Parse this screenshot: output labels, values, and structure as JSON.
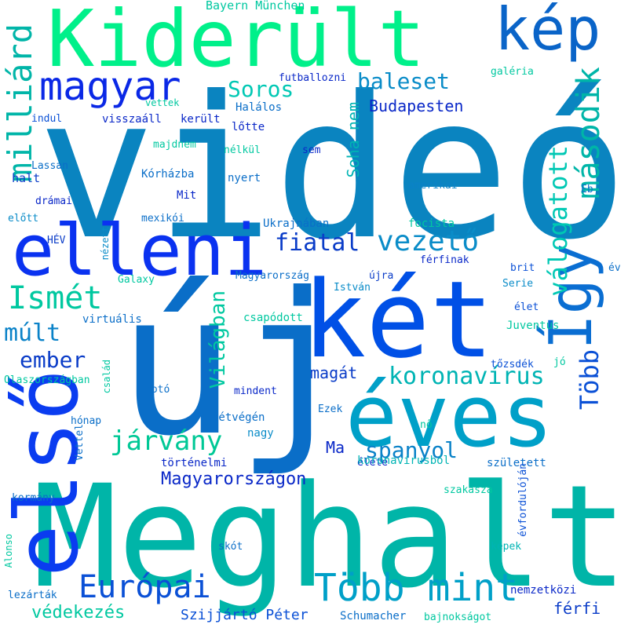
{
  "words": [
    {
      "text": "videó",
      "color": "#0a84c0"
    },
    {
      "text": "új",
      "color": "#0a6ec8"
    },
    {
      "text": "Meghalt",
      "color": "#00b5a8"
    },
    {
      "text": "Kiderült",
      "color": "#00f08a"
    },
    {
      "text": "két",
      "color": "#0050e6"
    },
    {
      "text": "éves",
      "color": "#00a0c8"
    },
    {
      "text": "első",
      "color": "#0a3cf0"
    },
    {
      "text": "elleni",
      "color": "#0a32f0"
    },
    {
      "text": "kép",
      "color": "#0a64c8"
    },
    {
      "text": "Így",
      "color": "#0a6ed2"
    },
    {
      "text": "magyar",
      "color": "#0a28e6"
    },
    {
      "text": "Több mint",
      "color": "#00a0c8"
    },
    {
      "text": "Európai",
      "color": "#0a50d6"
    },
    {
      "text": "milliárd",
      "color": "#00b5a8"
    },
    {
      "text": "vezető",
      "color": "#0a8cc8"
    },
    {
      "text": "Ismét",
      "color": "#00c8a0"
    },
    {
      "text": "második",
      "color": "#00b5a8"
    },
    {
      "text": "válogatott",
      "color": "#00c8b4"
    },
    {
      "text": "Több",
      "color": "#0a50d6"
    },
    {
      "text": "fiatal",
      "color": "#0a3cc8"
    },
    {
      "text": "koronavírus",
      "color": "#00b4b4"
    },
    {
      "text": "járvány",
      "color": "#00c896"
    },
    {
      "text": "spanyol",
      "color": "#0a82c8"
    },
    {
      "text": "baleset",
      "color": "#0a8cc8"
    },
    {
      "text": "Soros",
      "color": "#00c8b4"
    },
    {
      "text": "ember",
      "color": "#0a3cc8"
    },
    {
      "text": "múlt",
      "color": "#0a82c8"
    },
    {
      "text": "Világban",
      "color": "#00c8a0"
    },
    {
      "text": "Magyarországon",
      "color": "#0a28c8"
    },
    {
      "text": "védekezés",
      "color": "#00c8a0"
    },
    {
      "text": "Budapesten",
      "color": "#0a28c8"
    },
    {
      "text": "Soha nem",
      "color": "#00b4b4"
    },
    {
      "text": "magát",
      "color": "#0a3cc8"
    },
    {
      "text": "Ma",
      "color": "#0a28c8"
    },
    {
      "text": "férfi",
      "color": "#0a3cc8"
    },
    {
      "text": "Szijjártó Péter",
      "color": "#0a50d6"
    },
    {
      "text": "Bayern München",
      "color": "#00c8a0"
    },
    {
      "text": "futballozni",
      "color": "#0a28c8"
    },
    {
      "text": "galéria",
      "color": "#00c8a0"
    },
    {
      "text": "vettek",
      "color": "#00c8a0"
    },
    {
      "text": "Halálos",
      "color": "#0a6ec8"
    },
    {
      "text": "indul",
      "color": "#0a50d6"
    },
    {
      "text": "visszaáll",
      "color": "#0a28c8"
    },
    {
      "text": "került",
      "color": "#0a28c8"
    },
    {
      "text": "lőtte",
      "color": "#0a28c8"
    },
    {
      "text": "majdnem",
      "color": "#00c8a0"
    },
    {
      "text": "nélkül",
      "color": "#00c8a0"
    },
    {
      "text": "sem",
      "color": "#0a28c8"
    },
    {
      "text": "Lassan",
      "color": "#0a6ec8"
    },
    {
      "text": "halt",
      "color": "#0a3cc8"
    },
    {
      "text": "Kórházba",
      "color": "#0a6ec8"
    },
    {
      "text": "nyert",
      "color": "#0a6ec8"
    },
    {
      "text": "amerikai",
      "color": "#0a82c8"
    },
    {
      "text": "Eb",
      "color": "#0a6ec8"
    },
    {
      "text": "drámai",
      "color": "#0a28c8"
    },
    {
      "text": "Mit",
      "color": "#0a28c8"
    },
    {
      "text": "előtt",
      "color": "#0a8cc8"
    },
    {
      "text": "mexikói",
      "color": "#0a6ec8"
    },
    {
      "text": "Ukrajnában",
      "color": "#0a6ec8"
    },
    {
      "text": "focista",
      "color": "#00c8a0"
    },
    {
      "text": "HÉV",
      "color": "#0a3cc8"
    },
    {
      "text": "nézett",
      "color": "#0a8cc8"
    },
    {
      "text": "férfinak",
      "color": "#0a28c8"
    },
    {
      "text": "brit",
      "color": "#0a50d6"
    },
    {
      "text": "év",
      "color": "#0a6ec8"
    },
    {
      "text": "Galaxy",
      "color": "#00c8a0"
    },
    {
      "text": "Magyarország",
      "color": "#0a6ec8"
    },
    {
      "text": "újra",
      "color": "#0a3cc8"
    },
    {
      "text": "István",
      "color": "#0a8cc8"
    },
    {
      "text": "Serie",
      "color": "#0a8cc8"
    },
    {
      "text": "élet",
      "color": "#0a50d6"
    },
    {
      "text": "virtuális",
      "color": "#0a6ec8"
    },
    {
      "text": "csapódott",
      "color": "#00c8a0"
    },
    {
      "text": "Juventus",
      "color": "#00c8a0"
    },
    {
      "text": "tőzsdék",
      "color": "#0a50d6"
    },
    {
      "text": "jó",
      "color": "#00c8a0"
    },
    {
      "text": "Olaszországban",
      "color": "#00c8a0"
    },
    {
      "text": "család",
      "color": "#00c8a0"
    },
    {
      "text": "fotó",
      "color": "#0a6ec8"
    },
    {
      "text": "mindent",
      "color": "#0a28c8"
    },
    {
      "text": "hónap",
      "color": "#0a6ec8"
    },
    {
      "text": "hétvégén",
      "color": "#0a6ec8"
    },
    {
      "text": "Ezek",
      "color": "#0a6ec8"
    },
    {
      "text": "nagy",
      "color": "#0a8cc8"
    },
    {
      "text": "nő",
      "color": "#00c8a0"
    },
    {
      "text": "Vettel",
      "color": "#0a6ec8"
    },
    {
      "text": "történelmi",
      "color": "#0a28c8"
    },
    {
      "text": "élete",
      "color": "#0a28c8"
    },
    {
      "text": "koronavírusból",
      "color": "#00b4b4"
    },
    {
      "text": "született",
      "color": "#0a6ec8"
    },
    {
      "text": "évfordulóján",
      "color": "#0a50d6"
    },
    {
      "text": "kormány",
      "color": "#0a6ec8"
    },
    {
      "text": "szakasza",
      "color": "#00c8a0"
    },
    {
      "text": "Alonso",
      "color": "#00c8a0"
    },
    {
      "text": "skót",
      "color": "#0a6ec8"
    },
    {
      "text": "képek",
      "color": "#00b4b4"
    },
    {
      "text": "lezárták",
      "color": "#0a6ec8"
    },
    {
      "text": "nemzetközi",
      "color": "#0a28c8"
    },
    {
      "text": "Schumacher",
      "color": "#0a6ec8"
    },
    {
      "text": "bajnokságot",
      "color": "#00c8a0"
    }
  ]
}
